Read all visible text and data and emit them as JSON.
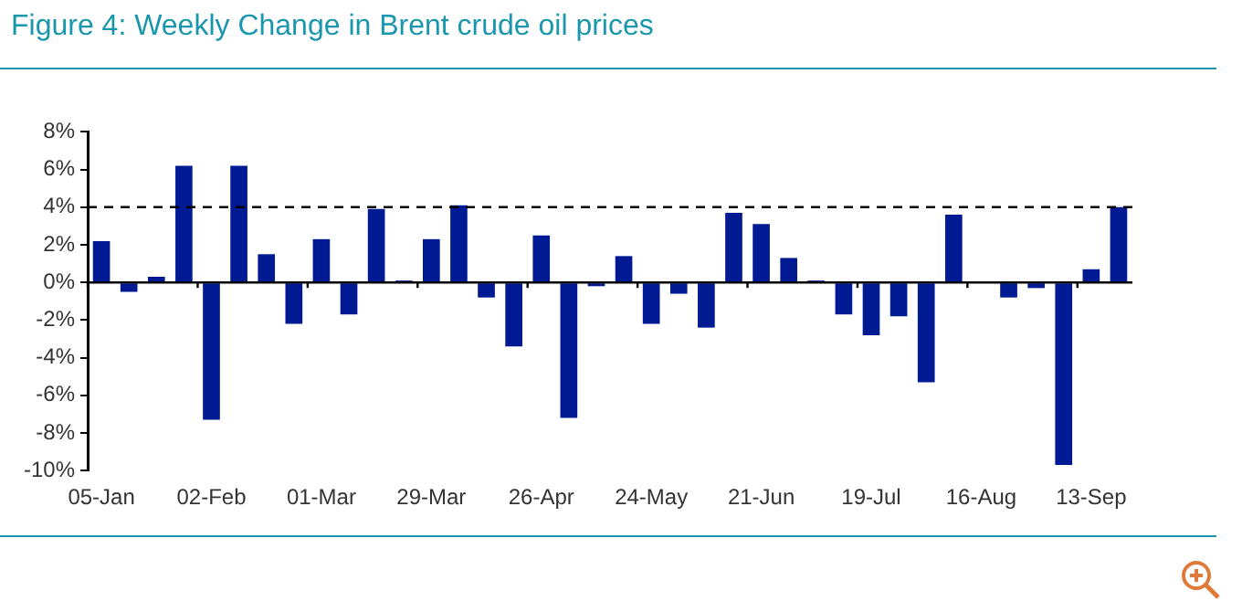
{
  "chart_data": {
    "type": "bar",
    "title": "Figure 4: Weekly Change in Brent crude oil prices",
    "categories": [
      "05-Jan",
      null,
      null,
      null,
      "02-Feb",
      null,
      null,
      null,
      "01-Mar",
      null,
      null,
      null,
      "29-Mar",
      null,
      null,
      null,
      "26-Apr",
      null,
      null,
      null,
      "24-May",
      null,
      null,
      null,
      "21-Jun",
      null,
      null,
      null,
      "19-Jul",
      null,
      null,
      null,
      "16-Aug",
      null,
      null,
      null,
      "13-Sep",
      null
    ],
    "values": [
      2.2,
      -0.5,
      0.3,
      6.2,
      -7.3,
      6.2,
      1.5,
      -2.2,
      2.3,
      -1.7,
      3.9,
      0.1,
      2.3,
      4.1,
      -0.8,
      -3.4,
      2.5,
      -7.2,
      -0.2,
      1.4,
      -2.2,
      -0.6,
      -2.4,
      3.7,
      3.1,
      1.3,
      0.1,
      -1.7,
      -2.8,
      -1.8,
      -5.3,
      3.6,
      0,
      -0.8,
      -0.3,
      -9.7,
      0.7,
      4.0
    ],
    "color": "#001a94",
    "ylim": [
      -10,
      8
    ],
    "yticks": [
      {
        "value": -10,
        "label": "-10%"
      },
      {
        "value": -8,
        "label": "-8%"
      },
      {
        "value": -6,
        "label": "-6%"
      },
      {
        "value": -4,
        "label": "-4%"
      },
      {
        "value": -2,
        "label": "-2%"
      },
      {
        "value": 0,
        "label": "0%"
      },
      {
        "value": 2,
        "label": "2%"
      },
      {
        "value": 4,
        "label": "4%"
      },
      {
        "value": 6,
        "label": "6%"
      },
      {
        "value": 8,
        "label": "8%"
      }
    ],
    "grid": false,
    "ref_lines": [
      {
        "axis": "y",
        "value": 4,
        "color": "#000000",
        "line_style": "dashed"
      }
    ]
  }
}
